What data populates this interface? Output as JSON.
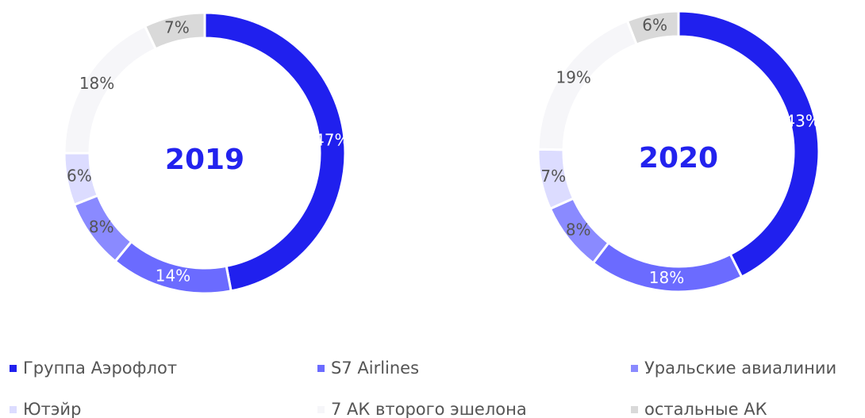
{
  "categories": [
    "Группа Аэрофлот",
    "S7 Airlines",
    "Уральские авиалинии",
    "Ютэйр",
    "7 АК второго эшелона",
    "остальные АК"
  ],
  "colors": [
    "#2020ee",
    "#6b6bff",
    "#8a8aff",
    "#dcdcff",
    "#f6f6f9",
    "#d9d9d9"
  ],
  "chart_data": [
    {
      "type": "pie",
      "title": "2019",
      "values": [
        47,
        14,
        8,
        6,
        18,
        7
      ],
      "value_labels": [
        "47%",
        "14%",
        "8%",
        "6%",
        "18%",
        "7%"
      ]
    },
    {
      "type": "pie",
      "title": "2020",
      "values": [
        43,
        18,
        8,
        7,
        19,
        6
      ],
      "value_labels": [
        "43%",
        "18%",
        "8%",
        "7%",
        "19%",
        "6%"
      ]
    }
  ]
}
